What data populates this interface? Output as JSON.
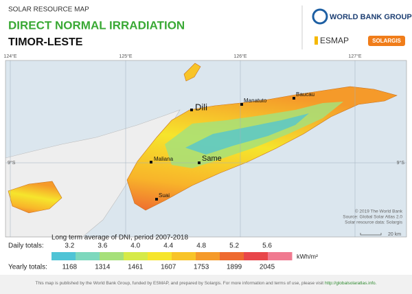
{
  "header": {
    "subtitle": "SOLAR RESOURCE MAP",
    "title": "DIRECT NORMAL IRRADIATION",
    "country": "TIMOR-LESTE"
  },
  "logos": {
    "world_bank": "WORLD BANK GROUP",
    "esmap": "ESMAP",
    "solargis": "SOLARGIS"
  },
  "map": {
    "longitudes": [
      "124°E",
      "125°E",
      "126°E",
      "127°E"
    ],
    "latitude": "9°S",
    "cities": [
      "Dili",
      "Manatuto",
      "Baucau",
      "Maliana",
      "Same",
      "Suai"
    ],
    "credits": [
      "© 2019 The World Bank",
      "Source: Global Solar Atlas 2.0",
      "Solar resource data: Solargis"
    ],
    "scale": "20 km"
  },
  "legend": {
    "caption": "Long term average of DNI, period 2007-2018",
    "daily_label": "Daily totals:",
    "daily": [
      "3.2",
      "3.6",
      "4.0",
      "4.4",
      "4.8",
      "5.2",
      "5.6"
    ],
    "yearly_label": "Yearly totals:",
    "yearly": [
      "1168",
      "1314",
      "1461",
      "1607",
      "1753",
      "1899",
      "2045"
    ],
    "unit": "kWh/m²",
    "colors": [
      "#4fc4d6",
      "#7dd8bd",
      "#a6e07a",
      "#d6ea48",
      "#f6e52c",
      "#f8c428",
      "#f59a2a",
      "#ee6a30",
      "#e8464a",
      "#f07a90"
    ]
  },
  "footer": {
    "text": "This map is published by the World Bank Group, funded by ESMAP, and prepared by Solargis. For more information and terms of use, please visit",
    "link": "http://globalsolaratlas.info."
  }
}
